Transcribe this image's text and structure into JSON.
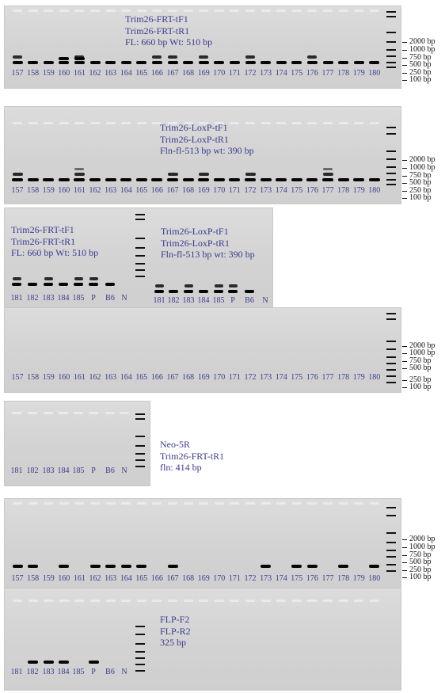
{
  "panel1": {
    "primers": [
      "Trim26-FRT-tF1",
      "Trim26-FRT-tR1",
      "FL: 660 bp Wt: 510 bp"
    ],
    "lanes": [
      "157",
      "158",
      "159",
      "160",
      "161",
      "162",
      "163",
      "164",
      "165",
      "166",
      "167",
      "168",
      "169",
      "170",
      "171",
      "172",
      "173",
      "174",
      "175",
      "176",
      "177",
      "178",
      "179",
      "180"
    ],
    "ladder": [
      "2000 bp",
      "1000 bp",
      "750 bp",
      "500 bp",
      "250 bp",
      "100 bp"
    ]
  },
  "panel2": {
    "primers": [
      "Trim26-LoxP-tF1",
      "Trim26-LoxP-tR1",
      "Fln-fl-513 bp wt: 390 bp"
    ],
    "lanes": [
      "157",
      "158",
      "159",
      "160",
      "161",
      "162",
      "163",
      "164",
      "165",
      "166",
      "167",
      "168",
      "169",
      "170",
      "171",
      "172",
      "173",
      "174",
      "175",
      "176",
      "177",
      "178",
      "179",
      "180"
    ],
    "ladder": [
      "2000 bp",
      "1000 bp",
      "750 bp",
      "500 bp",
      "250 bp",
      "100 bp"
    ]
  },
  "panel3a": {
    "primers": [
      "Trim26-FRT-tF1",
      "Trim26-FRT-tR1",
      "FL: 660 bp Wt: 510 bp"
    ],
    "lanes": [
      "181",
      "182",
      "183",
      "184",
      "185",
      "P",
      "B6",
      "N"
    ]
  },
  "panel3b": {
    "primers": [
      "Trim26-LoxP-tF1",
      "Trim26-LoxP-tR1",
      "Fln-fl-513 bp wt: 390 bp"
    ],
    "lanes": [
      "181",
      "182",
      "183",
      "184",
      "185",
      "P",
      "B6",
      "N"
    ]
  },
  "panel4": {
    "lanes": [
      "157",
      "158",
      "159",
      "160",
      "161",
      "162",
      "163",
      "164",
      "165",
      "166",
      "167",
      "168",
      "169",
      "170",
      "171",
      "172",
      "173",
      "174",
      "175",
      "176",
      "177",
      "178",
      "179",
      "180"
    ],
    "ladder": [
      "2000 bp",
      "1000 bp",
      "750 bp",
      "500 bp",
      "250 bp",
      "100 bp"
    ]
  },
  "panel5": {
    "primers": [
      "Neo-5R",
      "Trim26-FRT-tR1",
      "fln: 414 bp"
    ],
    "lanes": [
      "181",
      "182",
      "183",
      "184",
      "185",
      "P",
      "B6",
      "N"
    ]
  },
  "panel6": {
    "lanes": [
      "157",
      "158",
      "159",
      "160",
      "161",
      "162",
      "163",
      "164",
      "165",
      "166",
      "167",
      "168",
      "169",
      "170",
      "171",
      "172",
      "173",
      "174",
      "175",
      "176",
      "177",
      "178",
      "179",
      "180"
    ],
    "ladder": [
      "2000 bp",
      "1000 bp",
      "750 bp",
      "500 bp",
      "250 bp",
      "100 bp"
    ]
  },
  "panel7": {
    "primers": [
      "FLP-F2",
      "FLP-R2",
      "325 bp"
    ],
    "lanes": [
      "181",
      "182",
      "183",
      "184",
      "185",
      "P",
      "B6",
      "N"
    ]
  }
}
